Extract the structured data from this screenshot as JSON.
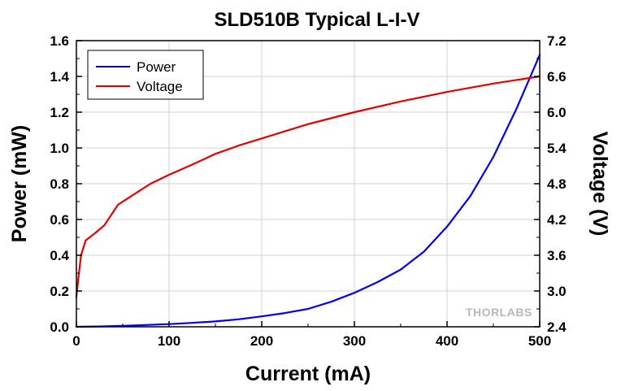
{
  "chart_data": {
    "type": "line",
    "title": "SLD510B Typical L-I-V",
    "xlabel": "Current (mA)",
    "ylabel": "Power (mW)",
    "y2label": "Voltage (V)",
    "xlim": [
      0,
      500
    ],
    "ylim": [
      0,
      1.6
    ],
    "y2lim": [
      2.4,
      7.2
    ],
    "x_ticks": [
      "0",
      "100",
      "200",
      "300",
      "400",
      "500"
    ],
    "y_ticks": [
      "0.0",
      "0.2",
      "0.4",
      "0.6",
      "0.8",
      "1.0",
      "1.2",
      "1.4",
      "1.6"
    ],
    "y2_ticks": [
      "2.4",
      "3.0",
      "3.6",
      "4.2",
      "4.8",
      "5.4",
      "6.0",
      "6.6",
      "7.2"
    ],
    "grid": true,
    "legend_position": "top-left",
    "watermark": "THORLABS",
    "series": [
      {
        "name": "Power",
        "axis": "left",
        "color": "#0000ee",
        "x": [
          0,
          25,
          50,
          75,
          100,
          125,
          150,
          175,
          200,
          225,
          250,
          275,
          300,
          325,
          350,
          375,
          400,
          425,
          450,
          475,
          500
        ],
        "y": [
          0.0,
          0.002,
          0.005,
          0.01,
          0.015,
          0.022,
          0.03,
          0.042,
          0.058,
          0.077,
          0.1,
          0.14,
          0.19,
          0.25,
          0.32,
          0.42,
          0.56,
          0.73,
          0.95,
          1.22,
          1.52
        ]
      },
      {
        "name": "Voltage",
        "axis": "right",
        "color": "#e00000",
        "x": [
          0,
          2,
          5,
          10,
          20,
          30,
          45,
          60,
          80,
          100,
          125,
          150,
          175,
          200,
          250,
          300,
          350,
          400,
          450,
          500
        ],
        "y": [
          2.9,
          3.2,
          3.6,
          3.85,
          3.97,
          4.1,
          4.45,
          4.6,
          4.8,
          4.95,
          5.12,
          5.3,
          5.44,
          5.56,
          5.8,
          6.0,
          6.18,
          6.34,
          6.48,
          6.6
        ]
      }
    ]
  }
}
